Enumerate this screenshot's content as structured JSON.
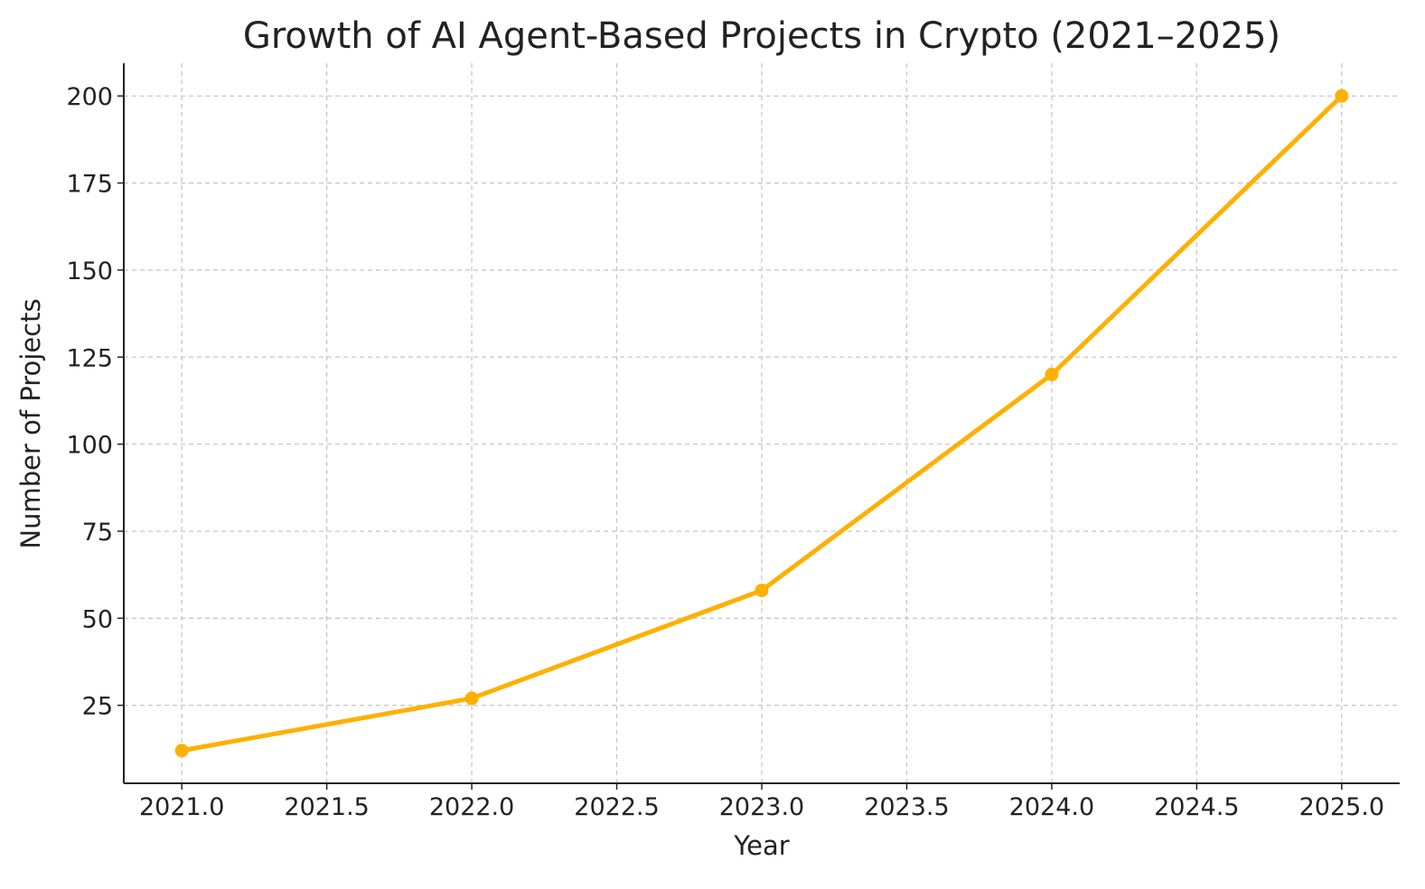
{
  "chart_data": {
    "type": "line",
    "title": "Growth of AI Agent-Based Projects in Crypto (2021–2025)",
    "xlabel": "Year",
    "ylabel": "Number of Projects",
    "x": [
      2021,
      2022,
      2023,
      2024,
      2025
    ],
    "series": [
      {
        "values": [
          12,
          27,
          58,
          120,
          200
        ],
        "color": "#FFB000",
        "marker": "circle"
      }
    ],
    "xlim": [
      2020.8,
      2025.2
    ],
    "ylim": [
      2.6,
      209.4
    ],
    "xticks": [
      2021.0,
      2021.5,
      2022.0,
      2022.5,
      2023.0,
      2023.5,
      2024.0,
      2024.5,
      2025.0
    ],
    "xtick_labels": [
      "2021.0",
      "2021.5",
      "2022.0",
      "2022.5",
      "2023.0",
      "2023.5",
      "2024.0",
      "2024.5",
      "2025.0"
    ],
    "yticks": [
      25,
      50,
      75,
      100,
      125,
      150,
      175,
      200
    ],
    "ytick_labels": [
      "25",
      "50",
      "75",
      "100",
      "125",
      "150",
      "175",
      "200"
    ],
    "grid": true,
    "grid_style": "dashed"
  }
}
